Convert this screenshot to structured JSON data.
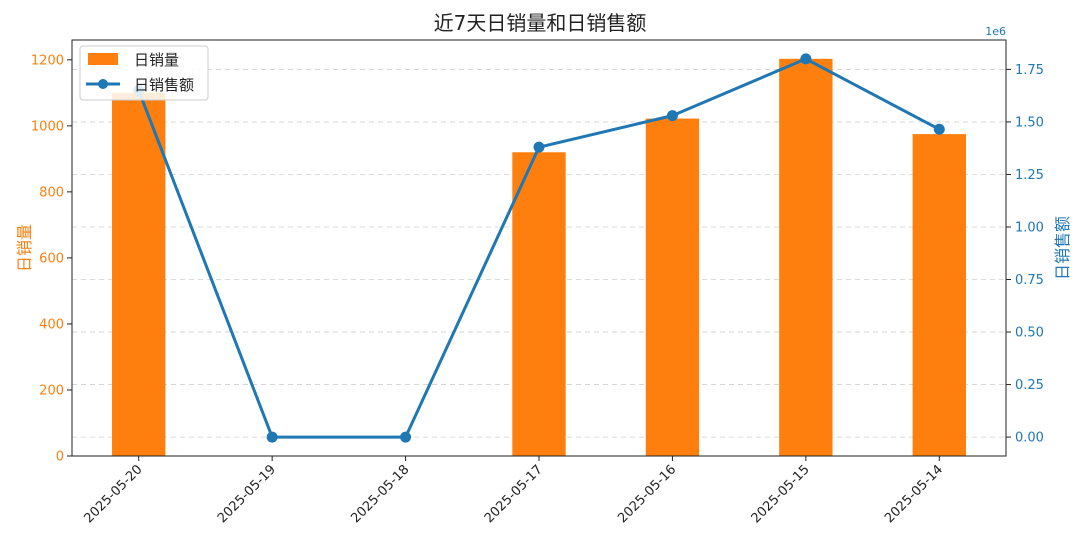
{
  "chart_data": {
    "type": "bar+line",
    "title": "近7天日销量和日销售额",
    "categories": [
      "2025-05-20",
      "2025-05-19",
      "2025-05-18",
      "2025-05-17",
      "2025-05-16",
      "2025-05-15",
      "2025-05-14"
    ],
    "series": [
      {
        "name": "日销量",
        "type": "bar",
        "axis": "left",
        "color": "#ff7f0e",
        "values": [
          1100,
          0,
          0,
          920,
          1022,
          1203,
          975
        ]
      },
      {
        "name": "日销售额",
        "type": "line",
        "axis": "right",
        "color": "#1f77b4",
        "values": [
          1650000,
          0,
          0,
          1380000,
          1530000,
          1800000,
          1465000
        ]
      }
    ],
    "ylabel_left": "日销量",
    "ylabel_right": "日销售额",
    "ylim_left": [
      0,
      1260
    ],
    "ylim_right": [
      -90000,
      1890000
    ],
    "yticks_left": [
      "0",
      "200",
      "400",
      "600",
      "800",
      "1000",
      "1200"
    ],
    "yticks_left_values": [
      0,
      200,
      400,
      600,
      800,
      1000,
      1200
    ],
    "yticks_right": [
      "0.00",
      "0.25",
      "0.50",
      "0.75",
      "1.00",
      "1.25",
      "1.50",
      "1.75"
    ],
    "yticks_right_values": [
      0,
      250000,
      500000,
      750000,
      1000000,
      1250000,
      1500000,
      1750000
    ],
    "right_axis_offset": "1e6",
    "grid": true,
    "legend_position": "top-left"
  }
}
